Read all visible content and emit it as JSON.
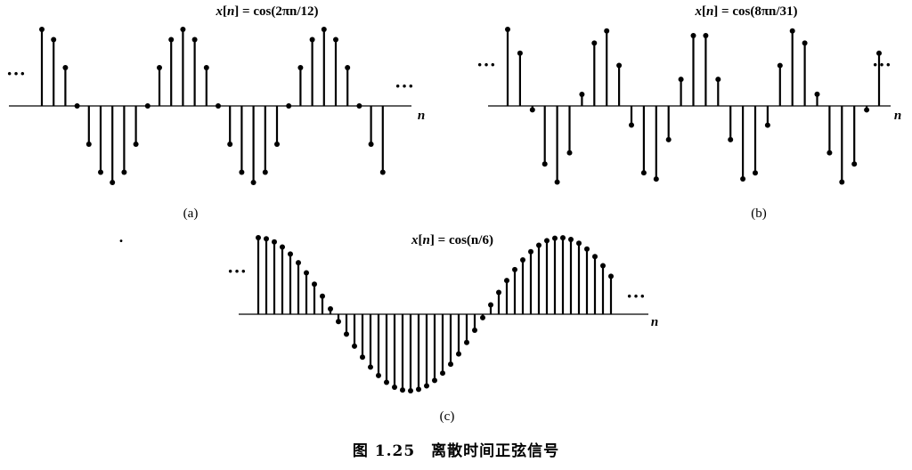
{
  "caption": "图 1.25　离散时间正弦信号",
  "stray_mark": ".",
  "chart_data": [
    {
      "type": "stem",
      "panel_label": "(a)",
      "title": {
        "pre": "x",
        "bracket_open": "[",
        "n": "n",
        "bracket_close": "]",
        "rhs": " = cos(2πn/12)"
      },
      "axis_label": "n",
      "left_ellipsis": "···",
      "right_ellipsis": "···",
      "freq": 0.5236,
      "n_start": 0,
      "n_end": 29,
      "ylim": [
        -1,
        1
      ]
    },
    {
      "type": "stem",
      "panel_label": "(b)",
      "title": {
        "pre": "x",
        "bracket_open": "[",
        "n": "n",
        "bracket_close": "]",
        "rhs": " = cos(8πn/31)"
      },
      "axis_label": "n",
      "left_ellipsis": "···",
      "right_ellipsis": "···",
      "freq": 0.8107,
      "n_start": 0,
      "n_end": 30,
      "ylim": [
        -1,
        1
      ]
    },
    {
      "type": "stem",
      "panel_label": "(c)",
      "title": {
        "pre": "x",
        "bracket_open": "[",
        "n": "n",
        "bracket_close": "]",
        "rhs": " = cos(n/6)"
      },
      "axis_label": "n",
      "left_ellipsis": "···",
      "right_ellipsis": "···",
      "freq": 0.1667,
      "n_start": 0,
      "n_end": 44,
      "ylim": [
        -1,
        1
      ]
    }
  ]
}
